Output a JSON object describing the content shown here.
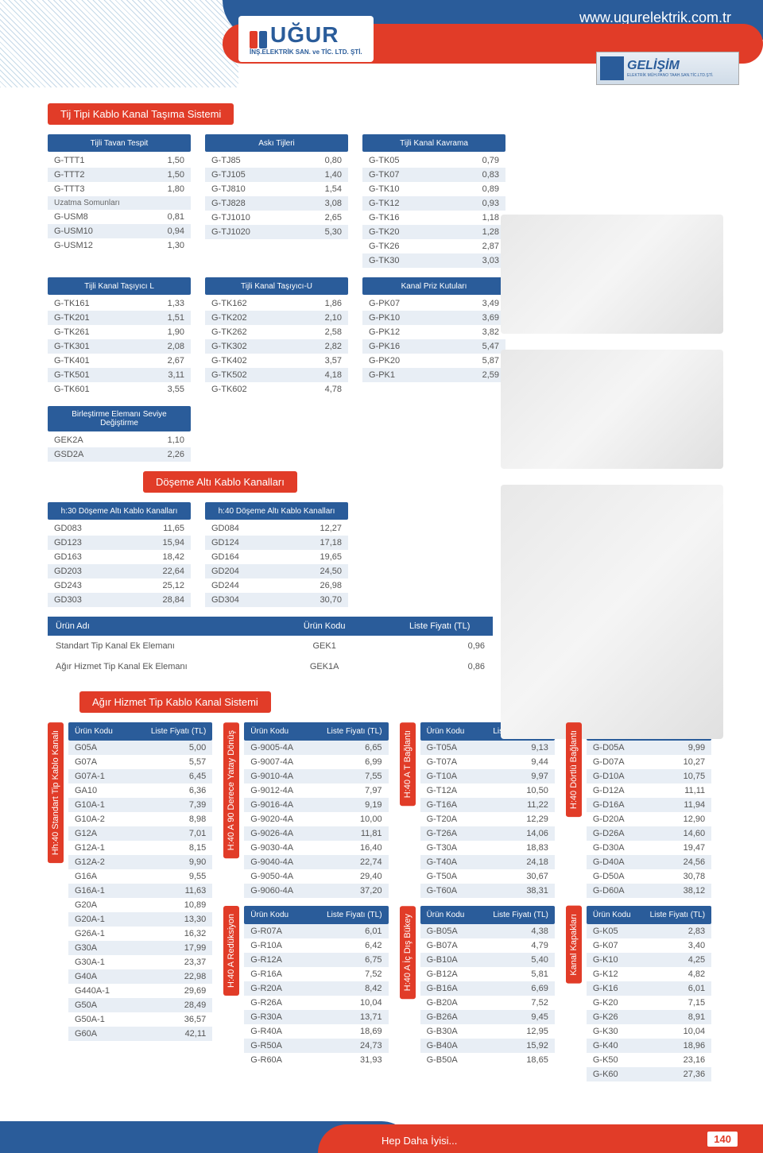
{
  "header": {
    "url": "www.ugurelektrik.com.tr",
    "logo": "UĞUR",
    "logo_sub": "İNŞ.ELEKTRİK SAN. ve TİC. LTD. ŞTİ.",
    "partner": "GELİŞİM",
    "partner_sub": "ELEKTRİK MÜH.PANO TAAH.SAN.TİC.LTD.ŞTİ."
  },
  "sec1_title": "Tij Tipi Kablo Kanal Taşıma Sistemi",
  "t1": {
    "h": "Tijli Tavan Tespit",
    "rows": [
      [
        "G-TTT1",
        "1,50"
      ],
      [
        "G-TTT2",
        "1,50"
      ],
      [
        "G-TTT3",
        "1,80"
      ],
      [
        "Uzatma Somunları",
        ""
      ],
      [
        "G-USM8",
        "0,81"
      ],
      [
        "G-USM10",
        "0,94"
      ],
      [
        "G-USM12",
        "1,30"
      ]
    ]
  },
  "t2": {
    "h": "Askı Tijleri",
    "rows": [
      [
        "G-TJ85",
        "0,80"
      ],
      [
        "G-TJ105",
        "1,40"
      ],
      [
        "G-TJ810",
        "1,54"
      ],
      [
        "G-TJ828",
        "3,08"
      ],
      [
        "G-TJ1010",
        "2,65"
      ],
      [
        "G-TJ1020",
        "5,30"
      ]
    ]
  },
  "t3": {
    "h": "Tijli Kanal Kavrama",
    "rows": [
      [
        "G-TK05",
        "0,79"
      ],
      [
        "G-TK07",
        "0,83"
      ],
      [
        "G-TK10",
        "0,89"
      ],
      [
        "G-TK12",
        "0,93"
      ],
      [
        "G-TK16",
        "1,18"
      ],
      [
        "G-TK20",
        "1,28"
      ],
      [
        "G-TK26",
        "2,87"
      ],
      [
        "G-TK30",
        "3,03"
      ]
    ]
  },
  "t4": {
    "h": "Tijli Kanal Taşıyıcı L",
    "rows": [
      [
        "G-TK161",
        "1,33"
      ],
      [
        "G-TK201",
        "1,51"
      ],
      [
        "G-TK261",
        "1,90"
      ],
      [
        "G-TK301",
        "2,08"
      ],
      [
        "G-TK401",
        "2,67"
      ],
      [
        "G-TK501",
        "3,11"
      ],
      [
        "G-TK601",
        "3,55"
      ]
    ]
  },
  "t5": {
    "h": "Tijli Kanal Taşıyıcı-U",
    "rows": [
      [
        "G-TK162",
        "1,86"
      ],
      [
        "G-TK202",
        "2,10"
      ],
      [
        "G-TK262",
        "2,58"
      ],
      [
        "G-TK302",
        "2,82"
      ],
      [
        "G-TK402",
        "3,57"
      ],
      [
        "G-TK502",
        "4,18"
      ],
      [
        "G-TK602",
        "4,78"
      ]
    ]
  },
  "t6": {
    "h": "Kanal Priz Kutuları",
    "rows": [
      [
        "G-PK07",
        "3,49"
      ],
      [
        "G-PK10",
        "3,69"
      ],
      [
        "G-PK12",
        "3,82"
      ],
      [
        "G-PK16",
        "5,47"
      ],
      [
        "G-PK20",
        "5,87"
      ],
      [
        "G-PK1",
        "2,59"
      ]
    ]
  },
  "t7": {
    "h": "Birleştirme Elemanı Seviye Değiştirme",
    "rows": [
      [
        "GEK2A",
        "1,10"
      ],
      [
        "GSD2A",
        "2,26"
      ]
    ]
  },
  "sec2_title": "Döşeme Altı Kablo Kanalları",
  "t8": {
    "h": "h:30 Döşeme Altı Kablo Kanalları",
    "rows": [
      [
        "GD083",
        "11,65"
      ],
      [
        "GD123",
        "15,94"
      ],
      [
        "GD163",
        "18,42"
      ],
      [
        "GD203",
        "22,64"
      ],
      [
        "GD243",
        "25,12"
      ],
      [
        "GD303",
        "28,84"
      ]
    ]
  },
  "t9": {
    "h": "h:40 Döşeme Altı Kablo Kanalları",
    "rows": [
      [
        "GD084",
        "12,27"
      ],
      [
        "GD124",
        "17,18"
      ],
      [
        "GD164",
        "19,65"
      ],
      [
        "GD204",
        "24,50"
      ],
      [
        "GD244",
        "26,98"
      ],
      [
        "GD304",
        "30,70"
      ]
    ]
  },
  "prod": {
    "h1": "Ürün Adı",
    "h2": "Ürün Kodu",
    "h3": "Liste Fiyatı (TL)",
    "rows": [
      [
        "Standart Tip Kanal Ek Elemanı",
        "GEK1",
        "0,96"
      ],
      [
        "Ağır Hizmet Tip Kanal Ek Elemanı",
        "GEK1A",
        "0,86"
      ]
    ]
  },
  "sec3_title": "Ağır Hizmet Tip Kablo Kanal Sistemi",
  "heavy_h1": "Ürün Kodu",
  "heavy_h2": "Liste Fiyatı (TL)",
  "h1": {
    "tab": "Hh:40 Standart Tip Kablo Kanalı",
    "rows": [
      [
        "G05A",
        "5,00"
      ],
      [
        "G07A",
        "5,57"
      ],
      [
        "G07A-1",
        "6,45"
      ],
      [
        "GA10",
        "6,36"
      ],
      [
        "G10A-1",
        "7,39"
      ],
      [
        "G10A-2",
        "8,98"
      ],
      [
        "G12A",
        "7,01"
      ],
      [
        "G12A-1",
        "8,15"
      ],
      [
        "G12A-2",
        "9,90"
      ],
      [
        "G16A",
        "9,55"
      ],
      [
        "G16A-1",
        "11,63"
      ],
      [
        "G20A",
        "10,89"
      ],
      [
        "G20A-1",
        "13,30"
      ],
      [
        "G26A-1",
        "16,32"
      ],
      [
        "G30A",
        "17,99"
      ],
      [
        "G30A-1",
        "23,37"
      ],
      [
        "G40A",
        "22,98"
      ],
      [
        "G440A-1",
        "29,69"
      ],
      [
        "G50A",
        "28,49"
      ],
      [
        "G50A-1",
        "36,57"
      ],
      [
        "G60A",
        "42,11"
      ]
    ]
  },
  "h2": {
    "tab": "H:40 A 90 Derece Yatay Dönüş",
    "rows": [
      [
        "G-9005-4A",
        "6,65"
      ],
      [
        "G-9007-4A",
        "6,99"
      ],
      [
        "G-9010-4A",
        "7,55"
      ],
      [
        "G-9012-4A",
        "7,97"
      ],
      [
        "G-9016-4A",
        "9,19"
      ],
      [
        "G-9020-4A",
        "10,00"
      ],
      [
        "G-9026-4A",
        "11,81"
      ],
      [
        "G-9030-4A",
        "16,40"
      ],
      [
        "G-9040-4A",
        "22,74"
      ],
      [
        "G-9050-4A",
        "29,40"
      ],
      [
        "G-9060-4A",
        "37,20"
      ]
    ]
  },
  "h3": {
    "tab": "H:40 A Redüksiyon",
    "rows": [
      [
        "G-R07A",
        "6,01"
      ],
      [
        "G-R10A",
        "6,42"
      ],
      [
        "G-R12A",
        "6,75"
      ],
      [
        "G-R16A",
        "7,52"
      ],
      [
        "G-R20A",
        "8,42"
      ],
      [
        "G-R26A",
        "10,04"
      ],
      [
        "G-R30A",
        "13,71"
      ],
      [
        "G-R40A",
        "18,69"
      ],
      [
        "G-R50A",
        "24,73"
      ],
      [
        "G-R60A",
        "31,93"
      ]
    ]
  },
  "h4": {
    "tab": "H:40 A T Bağlantı",
    "rows": [
      [
        "G-T05A",
        "9,13"
      ],
      [
        "G-T07A",
        "9,44"
      ],
      [
        "G-T10A",
        "9,97"
      ],
      [
        "G-T12A",
        "10,50"
      ],
      [
        "G-T16A",
        "11,22"
      ],
      [
        "G-T20A",
        "12,29"
      ],
      [
        "G-T26A",
        "14,06"
      ],
      [
        "G-T30A",
        "18,83"
      ],
      [
        "G-T40A",
        "24,18"
      ],
      [
        "G-T50A",
        "30,67"
      ],
      [
        "G-T60A",
        "38,31"
      ]
    ]
  },
  "h5": {
    "tab": "H:40 A İç Dış Bükey",
    "rows": [
      [
        "G-B05A",
        "4,38"
      ],
      [
        "G-B07A",
        "4,79"
      ],
      [
        "G-B10A",
        "5,40"
      ],
      [
        "G-B12A",
        "5,81"
      ],
      [
        "G-B16A",
        "6,69"
      ],
      [
        "G-B20A",
        "7,52"
      ],
      [
        "G-B26A",
        "9,45"
      ],
      [
        "G-B30A",
        "12,95"
      ],
      [
        "G-B40A",
        "15,92"
      ],
      [
        "G-B50A",
        "18,65"
      ]
    ]
  },
  "h6": {
    "tab": "H:40 Dörtlü Bağlantı",
    "rows": [
      [
        "G-D05A",
        "9,99"
      ],
      [
        "G-D07A",
        "10,27"
      ],
      [
        "G-D10A",
        "10,75"
      ],
      [
        "G-D12A",
        "11,11"
      ],
      [
        "G-D16A",
        "11,94"
      ],
      [
        "G-D20A",
        "12,90"
      ],
      [
        "G-D26A",
        "14,60"
      ],
      [
        "G-D30A",
        "19,47"
      ],
      [
        "G-D40A",
        "24,56"
      ],
      [
        "G-D50A",
        "30,78"
      ],
      [
        "G-D60A",
        "38,12"
      ]
    ]
  },
  "h7": {
    "tab": "Kanal Kapakları",
    "rows": [
      [
        "G-K05",
        "2,83"
      ],
      [
        "G-K07",
        "3,40"
      ],
      [
        "G-K10",
        "4,25"
      ],
      [
        "G-K12",
        "4,82"
      ],
      [
        "G-K16",
        "6,01"
      ],
      [
        "G-K20",
        "7,15"
      ],
      [
        "G-K26",
        "8,91"
      ],
      [
        "G-K30",
        "10,04"
      ],
      [
        "G-K40",
        "18,96"
      ],
      [
        "G-K50",
        "23,16"
      ],
      [
        "G-K60",
        "27,36"
      ]
    ]
  },
  "footer": {
    "text": "Hep Daha İyisi...",
    "page": "140"
  }
}
